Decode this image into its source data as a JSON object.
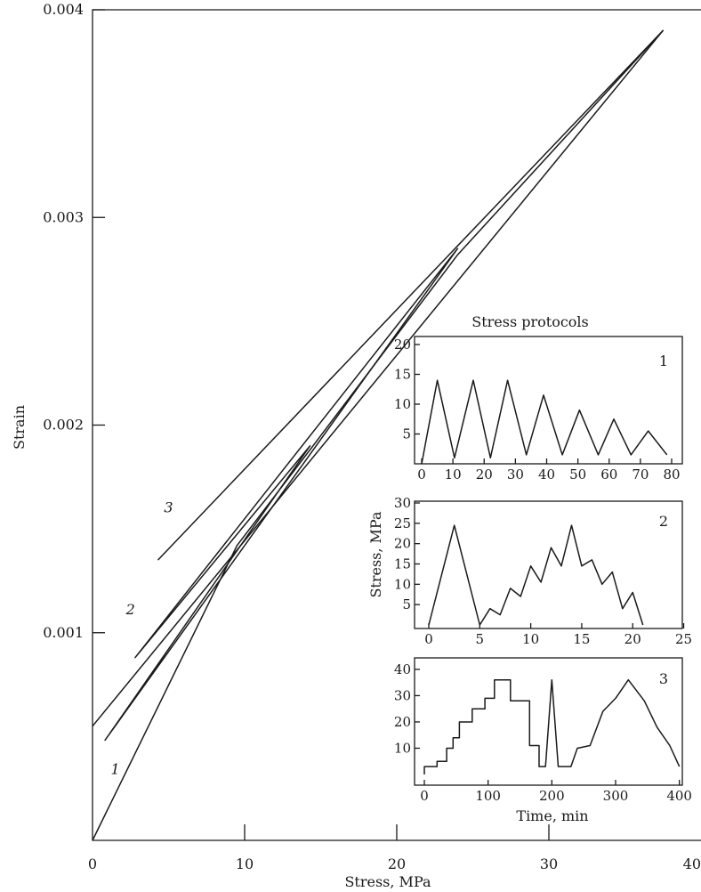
{
  "chart_data": [
    {
      "type": "line",
      "title": "",
      "xlabel": "Stress, MPa",
      "ylabel": "Strain",
      "xlim": [
        0,
        40
      ],
      "ylim": [
        0,
        0.004
      ],
      "xticks": [
        "0",
        "10",
        "20",
        "30",
        "40"
      ],
      "yticks": [
        "0.001",
        "0.002",
        "0.003",
        "0.004"
      ],
      "series": [
        {
          "name": "1",
          "values": [
            [
              0.0,
              0.0
            ],
            [
              9.5,
              0.00142
            ],
            [
              14.5,
              0.0019
            ],
            [
              24.0,
              0.00282
            ],
            [
              37.5,
              0.0039
            ]
          ],
          "label_pos": [
            1.5,
            0.00032
          ]
        },
        {
          "name": "2",
          "values": [
            [
              0.8,
              0.00048
            ],
            [
              14.3,
              0.0019
            ],
            [
              2.8,
              0.00088
            ],
            [
              24.0,
              0.00285
            ],
            [
              0.8,
              0.00048
            ]
          ],
          "label_pos": [
            2.5,
            0.00109
          ]
        },
        {
          "name": "3",
          "values": [
            [
              0.0,
              0.00055
            ],
            [
              37.5,
              0.0039
            ],
            [
              4.3,
              0.00135
            ]
          ],
          "label_pos": [
            5.0,
            0.00158
          ]
        }
      ]
    },
    {
      "type": "line",
      "title": "Stress protocols",
      "panel_label": "1",
      "xlim": [
        0,
        80
      ],
      "ylim": [
        0,
        20
      ],
      "xticks": [
        "0",
        "10",
        "20",
        "30",
        "40",
        "50",
        "60",
        "70",
        "80"
      ],
      "yticks": [
        "5",
        "10",
        "15",
        "20"
      ],
      "x": [
        0,
        5,
        10.5,
        16.5,
        22,
        27.5,
        33.5,
        39,
        45,
        50.5,
        56.5,
        61.5,
        67,
        72.5,
        78.5
      ],
      "values": [
        0,
        14,
        1,
        14,
        1,
        14,
        1.5,
        11.5,
        1.5,
        9,
        1.5,
        7.5,
        1.5,
        5.5,
        1.5
      ]
    },
    {
      "type": "line",
      "title": "",
      "panel_label": "2",
      "ylabel": "Stress, MPa",
      "xlim": [
        0,
        26
      ],
      "ylim": [
        0,
        30
      ],
      "xticks": [
        "0",
        "5",
        "10",
        "15",
        "20",
        "25"
      ],
      "yticks": [
        "5",
        "10",
        "15",
        "20",
        "25",
        "30"
      ],
      "x": [
        0,
        2.5,
        5,
        6,
        7,
        8,
        9,
        10,
        11,
        12,
        13,
        14,
        15,
        16,
        17,
        18,
        19,
        20,
        21
      ],
      "values": [
        0,
        24.5,
        0,
        4,
        2.5,
        9,
        7,
        14.5,
        10.5,
        19,
        14.5,
        24.5,
        14.5,
        16,
        10,
        13,
        4,
        8,
        0
      ]
    },
    {
      "type": "line",
      "title": "",
      "panel_label": "3",
      "xlabel": "Time, min",
      "xlim": [
        0,
        420
      ],
      "ylim": [
        0,
        42
      ],
      "xticks": [
        "0",
        "100",
        "200",
        "300",
        "400"
      ],
      "yticks": [
        "10",
        "20",
        "30",
        "40"
      ],
      "x": [
        0,
        0,
        20,
        20,
        35,
        35,
        45,
        45,
        55,
        55,
        75,
        75,
        95,
        95,
        110,
        110,
        135,
        135,
        165,
        165,
        180,
        180,
        190,
        190,
        200,
        210,
        210,
        230,
        230,
        240,
        240,
        260,
        260,
        280,
        280,
        300,
        300,
        320,
        320,
        345,
        345,
        365,
        365,
        385,
        385,
        400
      ],
      "values": [
        0,
        3,
        3,
        5,
        5,
        10,
        10,
        14,
        14,
        20,
        20,
        25,
        25,
        29,
        29,
        36,
        36,
        28,
        28,
        11,
        11,
        3,
        3,
        3,
        36,
        3,
        3,
        3,
        3,
        10,
        10,
        11,
        11,
        24,
        24,
        29,
        29,
        36,
        36,
        28,
        28,
        18,
        18,
        11,
        11,
        3
      ]
    }
  ]
}
